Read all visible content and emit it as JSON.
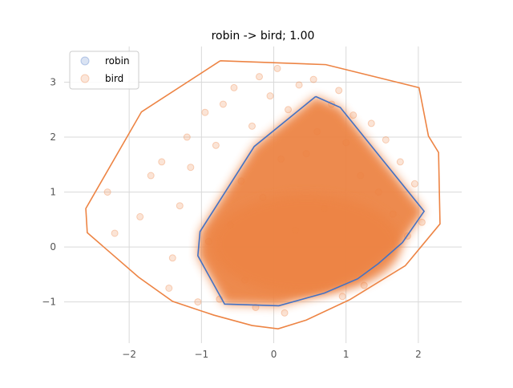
{
  "chart_data": {
    "type": "scatter",
    "title": "robin -> bird; 1.00",
    "xlabel": "",
    "ylabel": "",
    "xlim": [
      -2.9,
      2.6
    ],
    "ylim": [
      -1.75,
      3.65
    ],
    "xticks": [
      -2,
      -1,
      0,
      1,
      2
    ],
    "yticks": [
      -1,
      0,
      1,
      2,
      3
    ],
    "grid": true,
    "legend": {
      "position": "top-left",
      "entries": [
        "robin",
        "bird"
      ]
    },
    "series": [
      {
        "name": "robin",
        "color": "#4472c4",
        "marker": "circle",
        "marker_alpha": 0.2,
        "hull": [
          [
            0.58,
            2.74
          ],
          [
            0.92,
            2.54
          ],
          [
            2.08,
            0.65
          ],
          [
            1.78,
            0.08
          ],
          [
            1.45,
            -0.3
          ],
          [
            1.16,
            -0.58
          ],
          [
            0.7,
            -0.84
          ],
          [
            0.07,
            -1.07
          ],
          [
            -0.68,
            -1.04
          ],
          [
            -1.05,
            -0.16
          ],
          [
            -1.02,
            0.28
          ],
          [
            -0.27,
            1.83
          ],
          [
            0.58,
            2.74
          ]
        ]
      },
      {
        "name": "bird",
        "color": "#ed8444",
        "marker": "circle",
        "marker_alpha": 0.2,
        "hull": [
          [
            -0.74,
            3.39
          ],
          [
            0.72,
            3.32
          ],
          [
            2.01,
            2.9
          ],
          [
            2.14,
            2.02
          ],
          [
            2.28,
            1.72
          ],
          [
            2.3,
            0.42
          ],
          [
            1.82,
            -0.34
          ],
          [
            1.05,
            -0.96
          ],
          [
            0.45,
            -1.33
          ],
          [
            0.06,
            -1.49
          ],
          [
            -0.3,
            -1.43
          ],
          [
            -0.83,
            -1.24
          ],
          [
            -1.4,
            -0.99
          ],
          [
            -1.87,
            -0.55
          ],
          [
            -2.58,
            0.26
          ],
          [
            -2.6,
            0.7
          ],
          [
            -1.83,
            2.46
          ],
          [
            -0.74,
            3.39
          ]
        ],
        "scatter_x": [
          -2.2,
          -1.85,
          -2.3,
          -1.7,
          -1.55,
          -1.4,
          -1.3,
          -1.2,
          -1.15,
          -0.95,
          -0.9,
          -0.8,
          -0.7,
          -0.6,
          -0.55,
          -0.45,
          -0.4,
          -0.3,
          -0.2,
          -0.15,
          -0.05,
          0.05,
          0.1,
          0.2,
          0.3,
          0.35,
          0.45,
          0.55,
          0.6,
          0.7,
          0.8,
          0.9,
          1.0,
          1.1,
          1.2,
          1.35,
          1.45,
          1.55,
          1.65,
          1.75,
          1.85,
          1.95,
          2.05,
          1.25,
          0.95,
          0.15,
          -0.25,
          -0.75,
          -1.05,
          -1.45
        ],
        "scatter_y": [
          0.25,
          0.55,
          1.0,
          1.3,
          1.55,
          -0.2,
          0.75,
          2.0,
          1.45,
          2.45,
          0.1,
          1.85,
          2.6,
          0.4,
          2.9,
          1.2,
          -0.6,
          2.2,
          3.1,
          0.9,
          2.75,
          3.25,
          1.6,
          2.5,
          0.3,
          2.95,
          1.7,
          3.05,
          2.1,
          0.7,
          2.6,
          2.85,
          1.9,
          2.4,
          1.3,
          2.25,
          1.0,
          1.95,
          0.6,
          1.55,
          0.2,
          1.15,
          0.45,
          -0.7,
          -0.9,
          -1.2,
          -1.1,
          -0.95,
          -1.0,
          -0.75
        ]
      }
    ]
  }
}
